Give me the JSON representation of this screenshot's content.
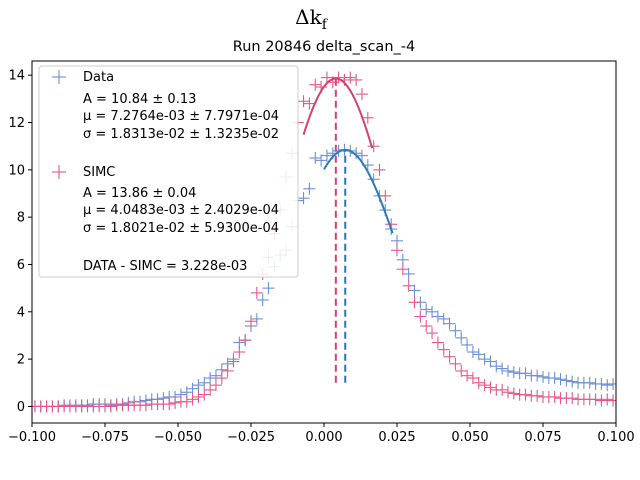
{
  "chart_data": {
    "type": "scatter",
    "suptitle": "Δk_f",
    "suptitle_display": "Δk",
    "suptitle_sub": "f",
    "title": "Run 20846 delta_scan_-4",
    "xlim": [
      -0.1,
      0.1
    ],
    "ylim": [
      -0.7,
      14.6
    ],
    "grid": false,
    "legend_placement": "top-left",
    "x_ticks": [
      {
        "value": -0.1,
        "label": "−0.100"
      },
      {
        "value": -0.075,
        "label": "−0.075"
      },
      {
        "value": -0.05,
        "label": "−0.050"
      },
      {
        "value": -0.025,
        "label": "−0.025"
      },
      {
        "value": 0.0,
        "label": "0.000"
      },
      {
        "value": 0.025,
        "label": "0.025"
      },
      {
        "value": 0.05,
        "label": "0.050"
      },
      {
        "value": 0.075,
        "label": "0.075"
      },
      {
        "value": 0.1,
        "label": "0.100"
      }
    ],
    "y_ticks": [
      {
        "value": 0,
        "label": "0"
      },
      {
        "value": 2,
        "label": "2"
      },
      {
        "value": 4,
        "label": "4"
      },
      {
        "value": 6,
        "label": "6"
      },
      {
        "value": 8,
        "label": "8"
      },
      {
        "value": 10,
        "label": "10"
      },
      {
        "value": 12,
        "label": "12"
      },
      {
        "value": 14,
        "label": "14"
      }
    ],
    "series": [
      {
        "name": "Data",
        "color": "#6b8fd6",
        "fit_color": "#2b7bb9",
        "x": [
          -0.099,
          -0.097,
          -0.095,
          -0.093,
          -0.091,
          -0.089,
          -0.087,
          -0.085,
          -0.083,
          -0.081,
          -0.079,
          -0.077,
          -0.075,
          -0.073,
          -0.071,
          -0.069,
          -0.067,
          -0.065,
          -0.063,
          -0.061,
          -0.059,
          -0.057,
          -0.055,
          -0.053,
          -0.051,
          -0.049,
          -0.047,
          -0.045,
          -0.043,
          -0.041,
          -0.039,
          -0.037,
          -0.035,
          -0.033,
          -0.031,
          -0.029,
          -0.027,
          -0.025,
          -0.023,
          -0.021,
          -0.019,
          -0.017,
          -0.015,
          -0.013,
          -0.011,
          -0.009,
          -0.007,
          -0.005,
          -0.003,
          -0.001,
          0.001,
          0.003,
          0.005,
          0.007,
          0.009,
          0.011,
          0.013,
          0.015,
          0.017,
          0.019,
          0.021,
          0.023,
          0.025,
          0.027,
          0.029,
          0.031,
          0.033,
          0.035,
          0.037,
          0.039,
          0.041,
          0.043,
          0.045,
          0.047,
          0.049,
          0.051,
          0.053,
          0.055,
          0.057,
          0.059,
          0.061,
          0.063,
          0.065,
          0.067,
          0.069,
          0.071,
          0.073,
          0.075,
          0.077,
          0.079,
          0.081,
          0.083,
          0.085,
          0.087,
          0.089,
          0.091,
          0.093,
          0.095,
          0.097,
          0.099
        ],
        "y": [
          0.0,
          0.0,
          0.0,
          0.0,
          0.0,
          0.05,
          0.05,
          0.05,
          0.05,
          0.05,
          0.1,
          0.1,
          0.1,
          0.05,
          0.1,
          0.1,
          0.15,
          0.2,
          0.2,
          0.25,
          0.3,
          0.3,
          0.35,
          0.4,
          0.4,
          0.5,
          0.6,
          0.75,
          0.9,
          1.0,
          1.2,
          1.3,
          1.55,
          1.8,
          2.0,
          2.7,
          2.8,
          3.4,
          3.7,
          4.5,
          5.0,
          5.9,
          6.4,
          6.6,
          7.6,
          8.7,
          8.8,
          9.2,
          10.5,
          10.4,
          10.6,
          10.7,
          10.8,
          10.85,
          10.8,
          10.7,
          10.6,
          10.2,
          9.6,
          8.9,
          8.3,
          7.5,
          7.0,
          6.2,
          5.6,
          4.9,
          4.4,
          4.1,
          4.0,
          3.8,
          3.7,
          3.5,
          3.2,
          2.9,
          2.6,
          2.3,
          2.2,
          2.0,
          1.9,
          1.7,
          1.6,
          1.5,
          1.45,
          1.4,
          1.4,
          1.3,
          1.3,
          1.25,
          1.2,
          1.2,
          1.15,
          1.1,
          1.05,
          1.0,
          1.0,
          1.0,
          0.95,
          0.95,
          0.9,
          0.95
        ],
        "stats": [
          "A = 10.84 ± 0.13",
          "μ = 7.2764e-03 ± 7.7971e-04",
          "σ = 1.8313e-02 ± 1.3235e-02"
        ],
        "fit": {
          "A": 10.84,
          "mu": 0.0072764,
          "sigma": 0.018313,
          "x_range": [
            0.0,
            0.0235
          ]
        }
      },
      {
        "name": "SIMC",
        "color": "#e8558a",
        "fit_color": "#d6406e",
        "x": [
          -0.099,
          -0.097,
          -0.095,
          -0.093,
          -0.091,
          -0.089,
          -0.087,
          -0.085,
          -0.083,
          -0.081,
          -0.079,
          -0.077,
          -0.075,
          -0.073,
          -0.071,
          -0.069,
          -0.067,
          -0.065,
          -0.063,
          -0.061,
          -0.059,
          -0.057,
          -0.055,
          -0.053,
          -0.051,
          -0.049,
          -0.047,
          -0.045,
          -0.043,
          -0.041,
          -0.039,
          -0.037,
          -0.035,
          -0.033,
          -0.031,
          -0.029,
          -0.027,
          -0.025,
          -0.023,
          -0.021,
          -0.019,
          -0.017,
          -0.015,
          -0.013,
          -0.011,
          -0.009,
          -0.007,
          -0.005,
          -0.003,
          -0.001,
          0.001,
          0.003,
          0.005,
          0.007,
          0.009,
          0.011,
          0.013,
          0.015,
          0.017,
          0.019,
          0.021,
          0.023,
          0.025,
          0.027,
          0.029,
          0.031,
          0.033,
          0.035,
          0.037,
          0.039,
          0.041,
          0.043,
          0.045,
          0.047,
          0.049,
          0.051,
          0.053,
          0.055,
          0.057,
          0.059,
          0.061,
          0.063,
          0.065,
          0.067,
          0.069,
          0.071,
          0.073,
          0.075,
          0.077,
          0.079,
          0.081,
          0.083,
          0.085,
          0.087,
          0.089,
          0.091,
          0.093,
          0.095,
          0.097,
          0.099
        ],
        "y": [
          0.0,
          0.0,
          0.0,
          0.0,
          0.0,
          0.0,
          0.0,
          0.0,
          0.0,
          0.0,
          0.0,
          0.0,
          0.0,
          0.0,
          0.05,
          0.05,
          0.05,
          0.05,
          0.05,
          0.05,
          0.1,
          0.1,
          0.1,
          0.1,
          0.15,
          0.2,
          0.2,
          0.3,
          0.4,
          0.5,
          0.7,
          0.9,
          1.2,
          1.5,
          1.9,
          2.3,
          2.8,
          3.6,
          4.8,
          5.6,
          6.3,
          7.3,
          8.3,
          9.7,
          10.7,
          12.0,
          12.9,
          12.8,
          13.6,
          13.5,
          13.9,
          13.7,
          13.9,
          13.8,
          13.9,
          13.8,
          13.2,
          12.2,
          11.0,
          10.0,
          8.9,
          7.7,
          6.6,
          5.8,
          5.1,
          4.4,
          3.8,
          3.4,
          3.1,
          2.7,
          2.4,
          2.1,
          1.8,
          1.5,
          1.3,
          1.2,
          1.0,
          0.9,
          0.8,
          0.7,
          0.7,
          0.6,
          0.55,
          0.5,
          0.5,
          0.45,
          0.45,
          0.4,
          0.4,
          0.4,
          0.35,
          0.35,
          0.35,
          0.3,
          0.3,
          0.3,
          0.3,
          0.25,
          0.3,
          0.25
        ],
        "stats": [
          "A = 13.86 ± 0.04",
          "μ = 4.0483e-03 ± 2.4029e-04",
          "σ = 1.8021e-02 ± 5.9300e-04"
        ],
        "fit": {
          "A": 13.86,
          "mu": 0.0040483,
          "sigma": 0.018021,
          "x_range": [
            -0.007,
            0.0165
          ]
        }
      }
    ],
    "mean_lines": [
      {
        "x": 0.0072764,
        "y_range": [
          1.0,
          10.84
        ],
        "color": "#1f77b4"
      },
      {
        "x": 0.0040483,
        "y_range": [
          1.0,
          13.86
        ],
        "color": "#d6406e"
      }
    ],
    "annotation": "DATA - SIMC = 3.228e-03"
  }
}
